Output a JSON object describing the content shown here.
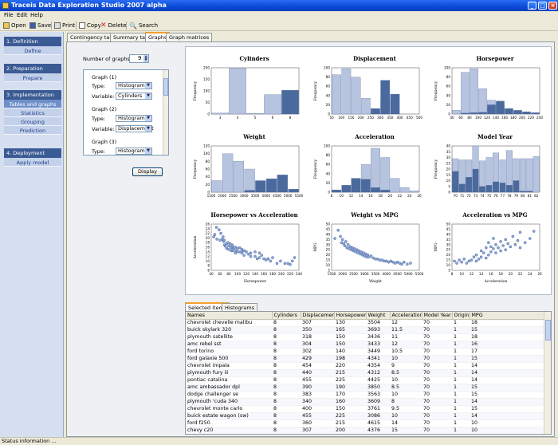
{
  "window": {
    "title": "Traceis Data Exploration Studio 2007 alpha"
  },
  "menu": [
    "File",
    "Edit",
    "Help"
  ],
  "toolbar": [
    {
      "label": "Open",
      "icon": "folder-icon"
    },
    {
      "label": "Save",
      "icon": "floppy-icon"
    },
    {
      "label": "Print",
      "icon": "printer-icon"
    },
    {
      "label": "Copy",
      "icon": "copy-icon"
    },
    {
      "label": "Delete",
      "icon": "delete-x-icon"
    },
    {
      "label": "Search",
      "icon": "search-icon"
    }
  ],
  "nav": [
    {
      "header": "1. Definition",
      "items": [
        {
          "label": "Define",
          "active": false
        }
      ]
    },
    {
      "header": "2. Preparation",
      "items": [
        {
          "label": "Prepare",
          "active": false
        }
      ]
    },
    {
      "header": "3. Implementation",
      "items": [
        {
          "label": "Tables and graphs",
          "active": true
        },
        {
          "label": "Statistics",
          "active": false
        },
        {
          "label": "Grouping",
          "active": false
        },
        {
          "label": "Prediction",
          "active": false
        }
      ]
    },
    {
      "header": "4. Deployment",
      "items": [
        {
          "label": "Apply model",
          "active": false
        }
      ]
    }
  ],
  "tabs": [
    {
      "label": "Contingency table",
      "active": false
    },
    {
      "label": "Summary table",
      "active": false
    },
    {
      "label": "Graphs",
      "active": true
    },
    {
      "label": "Graph matrices",
      "active": false
    }
  ],
  "settings": {
    "num_graphs_label": "Number of graphs:",
    "num_graphs_value": "9",
    "type_label": "Type:",
    "variable_label": "Variable:",
    "graphs": [
      {
        "title": "Graph (1)",
        "type": "Histogram",
        "variable": "Cylinders"
      },
      {
        "title": "Graph (2)",
        "type": "Histogram",
        "variable": "Displacement"
      },
      {
        "title": "Graph (3)",
        "type": "Histogram"
      }
    ],
    "display_button": "Display"
  },
  "colors": {
    "light": "#b7c4e0",
    "dark": "#4a6a9e",
    "scatter": "#8fa6d6"
  },
  "chart_data": [
    {
      "type": "bar",
      "title": "Cylinders",
      "ylabel": "Frequency",
      "ylim": [
        0,
        200
      ],
      "yticks": [
        0,
        50,
        100,
        150,
        200
      ],
      "categories": [
        "3",
        "4",
        "5",
        "6",
        "8"
      ],
      "series": [
        {
          "values": [
            4,
            199,
            3,
            84,
            0
          ]
        },
        {
          "values": [
            0,
            0,
            0,
            0,
            103
          ]
        }
      ]
    },
    {
      "type": "bar",
      "title": "Displacement",
      "ylabel": "Frequency",
      "ylim": [
        0,
        100
      ],
      "yticks": [
        0,
        20,
        40,
        60,
        80,
        100
      ],
      "xticks": [
        "50",
        "100",
        "150",
        "200",
        "250",
        "300",
        "350",
        "400",
        "450",
        "500"
      ],
      "series": [
        {
          "values": [
            85,
            98,
            80,
            34,
            0,
            33,
            0,
            0,
            0
          ]
        },
        {
          "values": [
            0,
            0,
            0,
            0,
            12,
            73,
            43,
            0,
            0
          ]
        }
      ]
    },
    {
      "type": "bar",
      "title": "Horsepower",
      "ylabel": "Frequency",
      "ylim": [
        0,
        100
      ],
      "yticks": [
        0,
        20,
        40,
        60,
        80,
        100
      ],
      "xticks": [
        "40",
        "60",
        "80",
        "100",
        "120",
        "140",
        "160",
        "180",
        "200",
        "220",
        "240"
      ],
      "series": [
        {
          "values": [
            8,
            90,
            98,
            55,
            30,
            20,
            0,
            0,
            0,
            0
          ]
        },
        {
          "values": [
            0,
            2,
            3,
            4,
            20,
            28,
            12,
            8,
            5,
            3
          ]
        }
      ]
    },
    {
      "type": "bar",
      "title": "Weight",
      "ylabel": "Frequency",
      "ylim": [
        0,
        120
      ],
      "yticks": [
        0,
        20,
        40,
        60,
        80,
        100,
        120
      ],
      "xticks": [
        "1500",
        "2000",
        "2500",
        "3000",
        "3500",
        "4000",
        "4500",
        "5000",
        "5500"
      ],
      "series": [
        {
          "values": [
            30,
            100,
            80,
            60,
            0,
            0,
            0,
            0
          ]
        },
        {
          "values": [
            0,
            0,
            0,
            5,
            30,
            35,
            45,
            8
          ]
        }
      ]
    },
    {
      "type": "bar",
      "title": "Acceleration",
      "ylabel": "Frequency",
      "ylim": [
        0,
        100
      ],
      "yticks": [
        0,
        20,
        40,
        60,
        80,
        100
      ],
      "xticks": [
        "8",
        "10",
        "12",
        "14",
        "16",
        "18",
        "20",
        "22",
        "24",
        "26"
      ],
      "series": [
        {
          "values": [
            2,
            8,
            30,
            60,
            95,
            75,
            30,
            10,
            3
          ]
        },
        {
          "values": [
            5,
            15,
            30,
            28,
            10,
            5,
            0,
            0,
            0
          ]
        }
      ]
    },
    {
      "type": "bar",
      "title": "Model Year",
      "ylabel": "Frequency",
      "ylim": [
        0,
        40
      ],
      "yticks": [
        0,
        5,
        10,
        15,
        20,
        25,
        30,
        35,
        40
      ],
      "categories": [
        "70",
        "71",
        "72",
        "73",
        "74",
        "75",
        "76",
        "77",
        "78",
        "79",
        "80",
        "81",
        "82"
      ],
      "series": [
        {
          "values": [
            29,
            28,
            28,
            40,
            27,
            30,
            34,
            28,
            36,
            29,
            29,
            29,
            31
          ]
        },
        {
          "values": [
            18,
            7,
            13,
            20,
            5,
            6,
            9,
            8,
            6,
            10,
            1,
            1,
            0
          ]
        }
      ]
    },
    {
      "type": "scatter",
      "title": "Horsepower vs Acceleration",
      "xlabel": "Horsepower",
      "ylabel": "Acceleration",
      "xlim": [
        40,
        240
      ],
      "ylim": [
        6,
        26
      ],
      "xticks": [
        "40",
        "60",
        "80",
        "100",
        "120",
        "140",
        "160",
        "180",
        "200",
        "220",
        "240"
      ],
      "yticks": [
        "6",
        "8",
        "10",
        "12",
        "14",
        "16",
        "18",
        "20",
        "22",
        "24",
        "26"
      ],
      "points": [
        [
          46,
          20.5
        ],
        [
          48,
          21.5
        ],
        [
          52,
          24.6
        ],
        [
          53,
          19.5
        ],
        [
          58,
          23.5
        ],
        [
          60,
          19
        ],
        [
          62,
          22
        ],
        [
          65,
          19.4
        ],
        [
          67,
          20.5
        ],
        [
          68,
          18.5
        ],
        [
          70,
          19
        ],
        [
          70,
          17
        ],
        [
          72,
          16.5
        ],
        [
          75,
          15.5
        ],
        [
          75,
          17.5
        ],
        [
          78,
          18
        ],
        [
          80,
          16.5
        ],
        [
          80,
          15
        ],
        [
          83,
          17.5
        ],
        [
          85,
          16
        ],
        [
          86,
          14.5
        ],
        [
          88,
          15
        ],
        [
          88,
          17
        ],
        [
          90,
          14.5
        ],
        [
          90,
          16
        ],
        [
          92,
          15.5
        ],
        [
          95,
          13.5
        ],
        [
          95,
          16
        ],
        [
          97,
          14.5
        ],
        [
          100,
          14
        ],
        [
          100,
          15.5
        ],
        [
          105,
          14
        ],
        [
          105,
          15.8
        ],
        [
          110,
          13.5
        ],
        [
          110,
          15
        ],
        [
          112,
          14.5
        ],
        [
          115,
          12.5
        ],
        [
          115,
          14.5
        ],
        [
          120,
          14
        ],
        [
          125,
          13
        ],
        [
          130,
          12
        ],
        [
          130,
          13.5
        ],
        [
          140,
          12
        ],
        [
          140,
          14
        ],
        [
          145,
          11
        ],
        [
          150,
          11.5
        ],
        [
          150,
          13.5
        ],
        [
          155,
          12.5
        ],
        [
          160,
          11
        ],
        [
          165,
          10.5
        ],
        [
          170,
          11
        ],
        [
          175,
          10
        ],
        [
          180,
          11.5
        ],
        [
          190,
          9
        ],
        [
          198,
          10
        ],
        [
          208,
          9
        ],
        [
          215,
          9
        ],
        [
          220,
          8.5
        ],
        [
          225,
          10
        ],
        [
          230,
          11.5
        ]
      ]
    },
    {
      "type": "scatter",
      "title": "Weight vs MPG",
      "xlabel": "Weight",
      "ylabel": "MPG",
      "xlim": [
        1500,
        5500
      ],
      "ylim": [
        5,
        50
      ],
      "xticks": [
        "1500",
        "2000",
        "2500",
        "3000",
        "3500",
        "4000",
        "4500",
        "5000",
        "5500"
      ],
      "yticks": [
        "5",
        "10",
        "15",
        "20",
        "25",
        "30",
        "35",
        "40",
        "45",
        "50"
      ],
      "points": [
        [
          1650,
          36
        ],
        [
          1800,
          44
        ],
        [
          1900,
          38
        ],
        [
          1950,
          32
        ],
        [
          2000,
          35
        ],
        [
          2050,
          31
        ],
        [
          2100,
          29
        ],
        [
          2150,
          33
        ],
        [
          2200,
          27
        ],
        [
          2250,
          30
        ],
        [
          2300,
          26
        ],
        [
          2350,
          28
        ],
        [
          2400,
          25
        ],
        [
          2450,
          27
        ],
        [
          2500,
          24
        ],
        [
          2550,
          26
        ],
        [
          2600,
          23
        ],
        [
          2650,
          25
        ],
        [
          2700,
          22
        ],
        [
          2750,
          24
        ],
        [
          2800,
          21
        ],
        [
          2850,
          23
        ],
        [
          2900,
          20
        ],
        [
          2950,
          22
        ],
        [
          3000,
          19
        ],
        [
          3050,
          21
        ],
        [
          3100,
          18
        ],
        [
          3150,
          20
        ],
        [
          3200,
          18
        ],
        [
          3300,
          19
        ],
        [
          3400,
          17
        ],
        [
          3500,
          16
        ],
        [
          3600,
          16
        ],
        [
          3700,
          15
        ],
        [
          3800,
          15
        ],
        [
          3900,
          14
        ],
        [
          4000,
          14
        ],
        [
          4100,
          13
        ],
        [
          4200,
          14
        ],
        [
          4300,
          13
        ],
        [
          4400,
          12
        ],
        [
          4500,
          13
        ],
        [
          4600,
          12
        ],
        [
          4700,
          11
        ],
        [
          4800,
          13
        ],
        [
          4950,
          11
        ],
        [
          5100,
          12
        ]
      ]
    },
    {
      "type": "scatter",
      "title": "Acceleration vs MPG",
      "xlabel": "Acceleration",
      "ylabel": "MPG",
      "xlim": [
        8,
        26
      ],
      "ylim": [
        5,
        50
      ],
      "xticks": [
        "8",
        "10",
        "12",
        "14",
        "16",
        "18",
        "20",
        "22",
        "24",
        "26"
      ],
      "yticks": [
        "5",
        "10",
        "15",
        "20",
        "25",
        "30",
        "35",
        "40",
        "45",
        "50"
      ],
      "points": [
        [
          8.5,
          14
        ],
        [
          9,
          12
        ],
        [
          9.5,
          15
        ],
        [
          10,
          13
        ],
        [
          10.5,
          16
        ],
        [
          11,
          12
        ],
        [
          11.5,
          14
        ],
        [
          12,
          15
        ],
        [
          12.5,
          18
        ],
        [
          13,
          14
        ],
        [
          13,
          20
        ],
        [
          13.5,
          16
        ],
        [
          14,
          18
        ],
        [
          14,
          24
        ],
        [
          14.5,
          22
        ],
        [
          15,
          17
        ],
        [
          15,
          27
        ],
        [
          15.5,
          20
        ],
        [
          15.5,
          32
        ],
        [
          16,
          23
        ],
        [
          16,
          28
        ],
        [
          16.5,
          26
        ],
        [
          16.5,
          36
        ],
        [
          17,
          22
        ],
        [
          17,
          30
        ],
        [
          17.5,
          27
        ],
        [
          18,
          24
        ],
        [
          18,
          33
        ],
        [
          18.5,
          29
        ],
        [
          19,
          25
        ],
        [
          19,
          35
        ],
        [
          19.5,
          31
        ],
        [
          20,
          28
        ],
        [
          20.5,
          38
        ],
        [
          21,
          30
        ],
        [
          21.5,
          34
        ],
        [
          22,
          27
        ],
        [
          22,
          42
        ],
        [
          23,
          32
        ],
        [
          24,
          36
        ],
        [
          24.8,
          43
        ]
      ]
    }
  ],
  "lower_tabs": [
    {
      "label": "Selected items",
      "active": true
    },
    {
      "label": "Histograms",
      "active": false
    }
  ],
  "table": {
    "columns": [
      "Names",
      "Cylinders",
      "Displacement",
      "Horsepower",
      "Weight",
      "Acceleration",
      "Model Year",
      "Origin",
      "MPG"
    ],
    "rows": [
      [
        "chevrolet chevelle malibu",
        "8",
        "307",
        "130",
        "3504",
        "12",
        "70",
        "1",
        "18"
      ],
      [
        "buick skylark 320",
        "8",
        "350",
        "165",
        "3693",
        "11.5",
        "70",
        "1",
        "15"
      ],
      [
        "plymouth satellite",
        "8",
        "318",
        "150",
        "3436",
        "11",
        "70",
        "1",
        "18"
      ],
      [
        "amc rebel sst",
        "8",
        "304",
        "150",
        "3433",
        "12",
        "70",
        "1",
        "16"
      ],
      [
        "ford torino",
        "8",
        "302",
        "140",
        "3449",
        "10.5",
        "70",
        "1",
        "17"
      ],
      [
        "ford galaxie 500",
        "8",
        "429",
        "198",
        "4341",
        "10",
        "70",
        "1",
        "15"
      ],
      [
        "chevrolet impala",
        "8",
        "454",
        "220",
        "4354",
        "9",
        "70",
        "1",
        "14"
      ],
      [
        "plymouth fury iii",
        "8",
        "440",
        "215",
        "4312",
        "8.5",
        "70",
        "1",
        "14"
      ],
      [
        "pontiac catalina",
        "8",
        "455",
        "225",
        "4425",
        "10",
        "70",
        "1",
        "14"
      ],
      [
        "amc ambassador dpl",
        "8",
        "390",
        "190",
        "3850",
        "8.5",
        "70",
        "1",
        "15"
      ],
      [
        "dodge challenger se",
        "8",
        "383",
        "170",
        "3563",
        "10",
        "70",
        "1",
        "15"
      ],
      [
        "plymouth 'cuda 340",
        "8",
        "340",
        "160",
        "3609",
        "8",
        "70",
        "1",
        "14"
      ],
      [
        "chevrolet monte carlo",
        "8",
        "400",
        "150",
        "3761",
        "9.5",
        "70",
        "1",
        "15"
      ],
      [
        "buick estate wagon (sw)",
        "8",
        "455",
        "225",
        "3086",
        "10",
        "70",
        "1",
        "14"
      ],
      [
        "ford f250",
        "8",
        "360",
        "215",
        "4615",
        "14",
        "70",
        "1",
        "10"
      ],
      [
        "chevy c20",
        "8",
        "307",
        "200",
        "4376",
        "15",
        "70",
        "1",
        "10"
      ]
    ]
  },
  "status": "Status information ..."
}
